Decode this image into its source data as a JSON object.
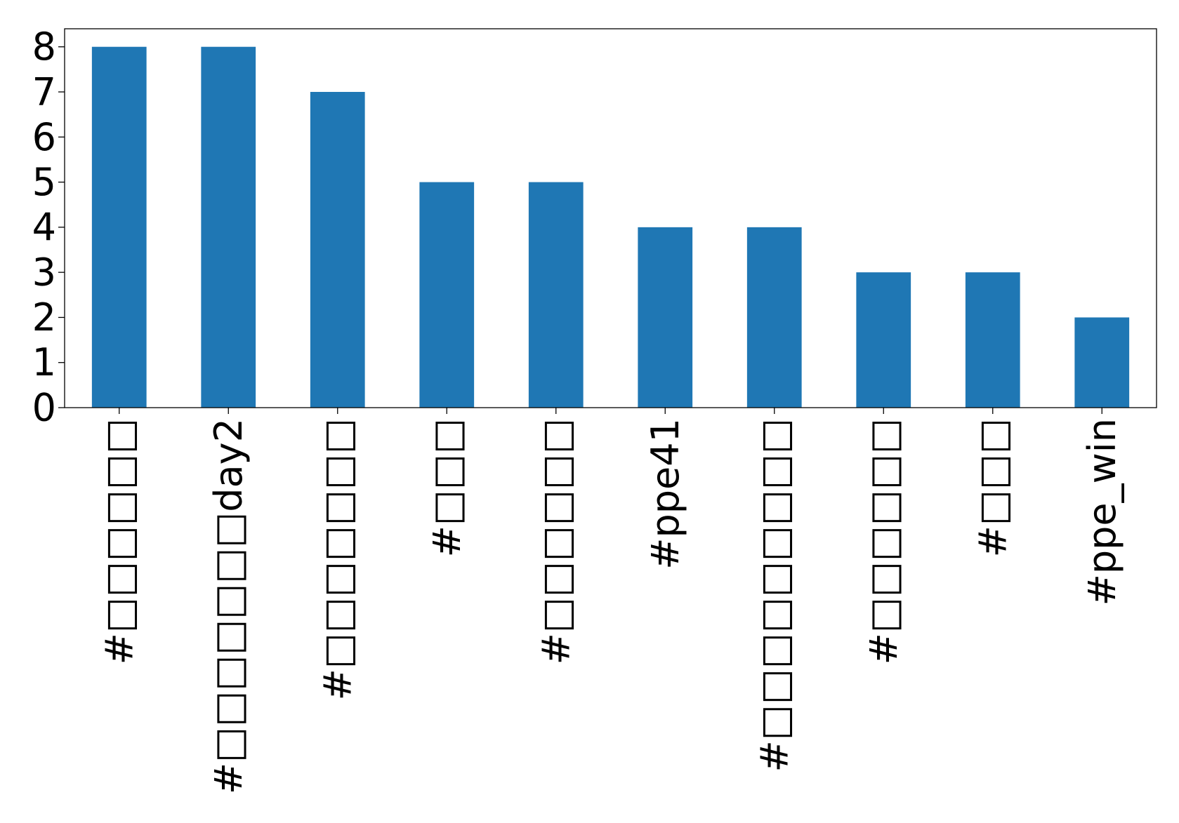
{
  "chart_data": {
    "type": "bar",
    "categories": [
      "#□□□□□□",
      "#□□□□□□□day2",
      "#□□□□□□□",
      "#□□□",
      "#□□□□□□",
      "#ppe41",
      "#□□□□□□□□□",
      "#□□□□□□",
      "#□□□",
      "#ppe_win"
    ],
    "values": [
      8,
      8,
      7,
      5,
      5,
      4,
      4,
      3,
      3,
      2
    ],
    "color": "#1f77b4",
    "ylim": [
      0,
      8.4
    ],
    "yticks": [
      0,
      1,
      2,
      3,
      4,
      5,
      6,
      7,
      8
    ],
    "grid": false
  }
}
